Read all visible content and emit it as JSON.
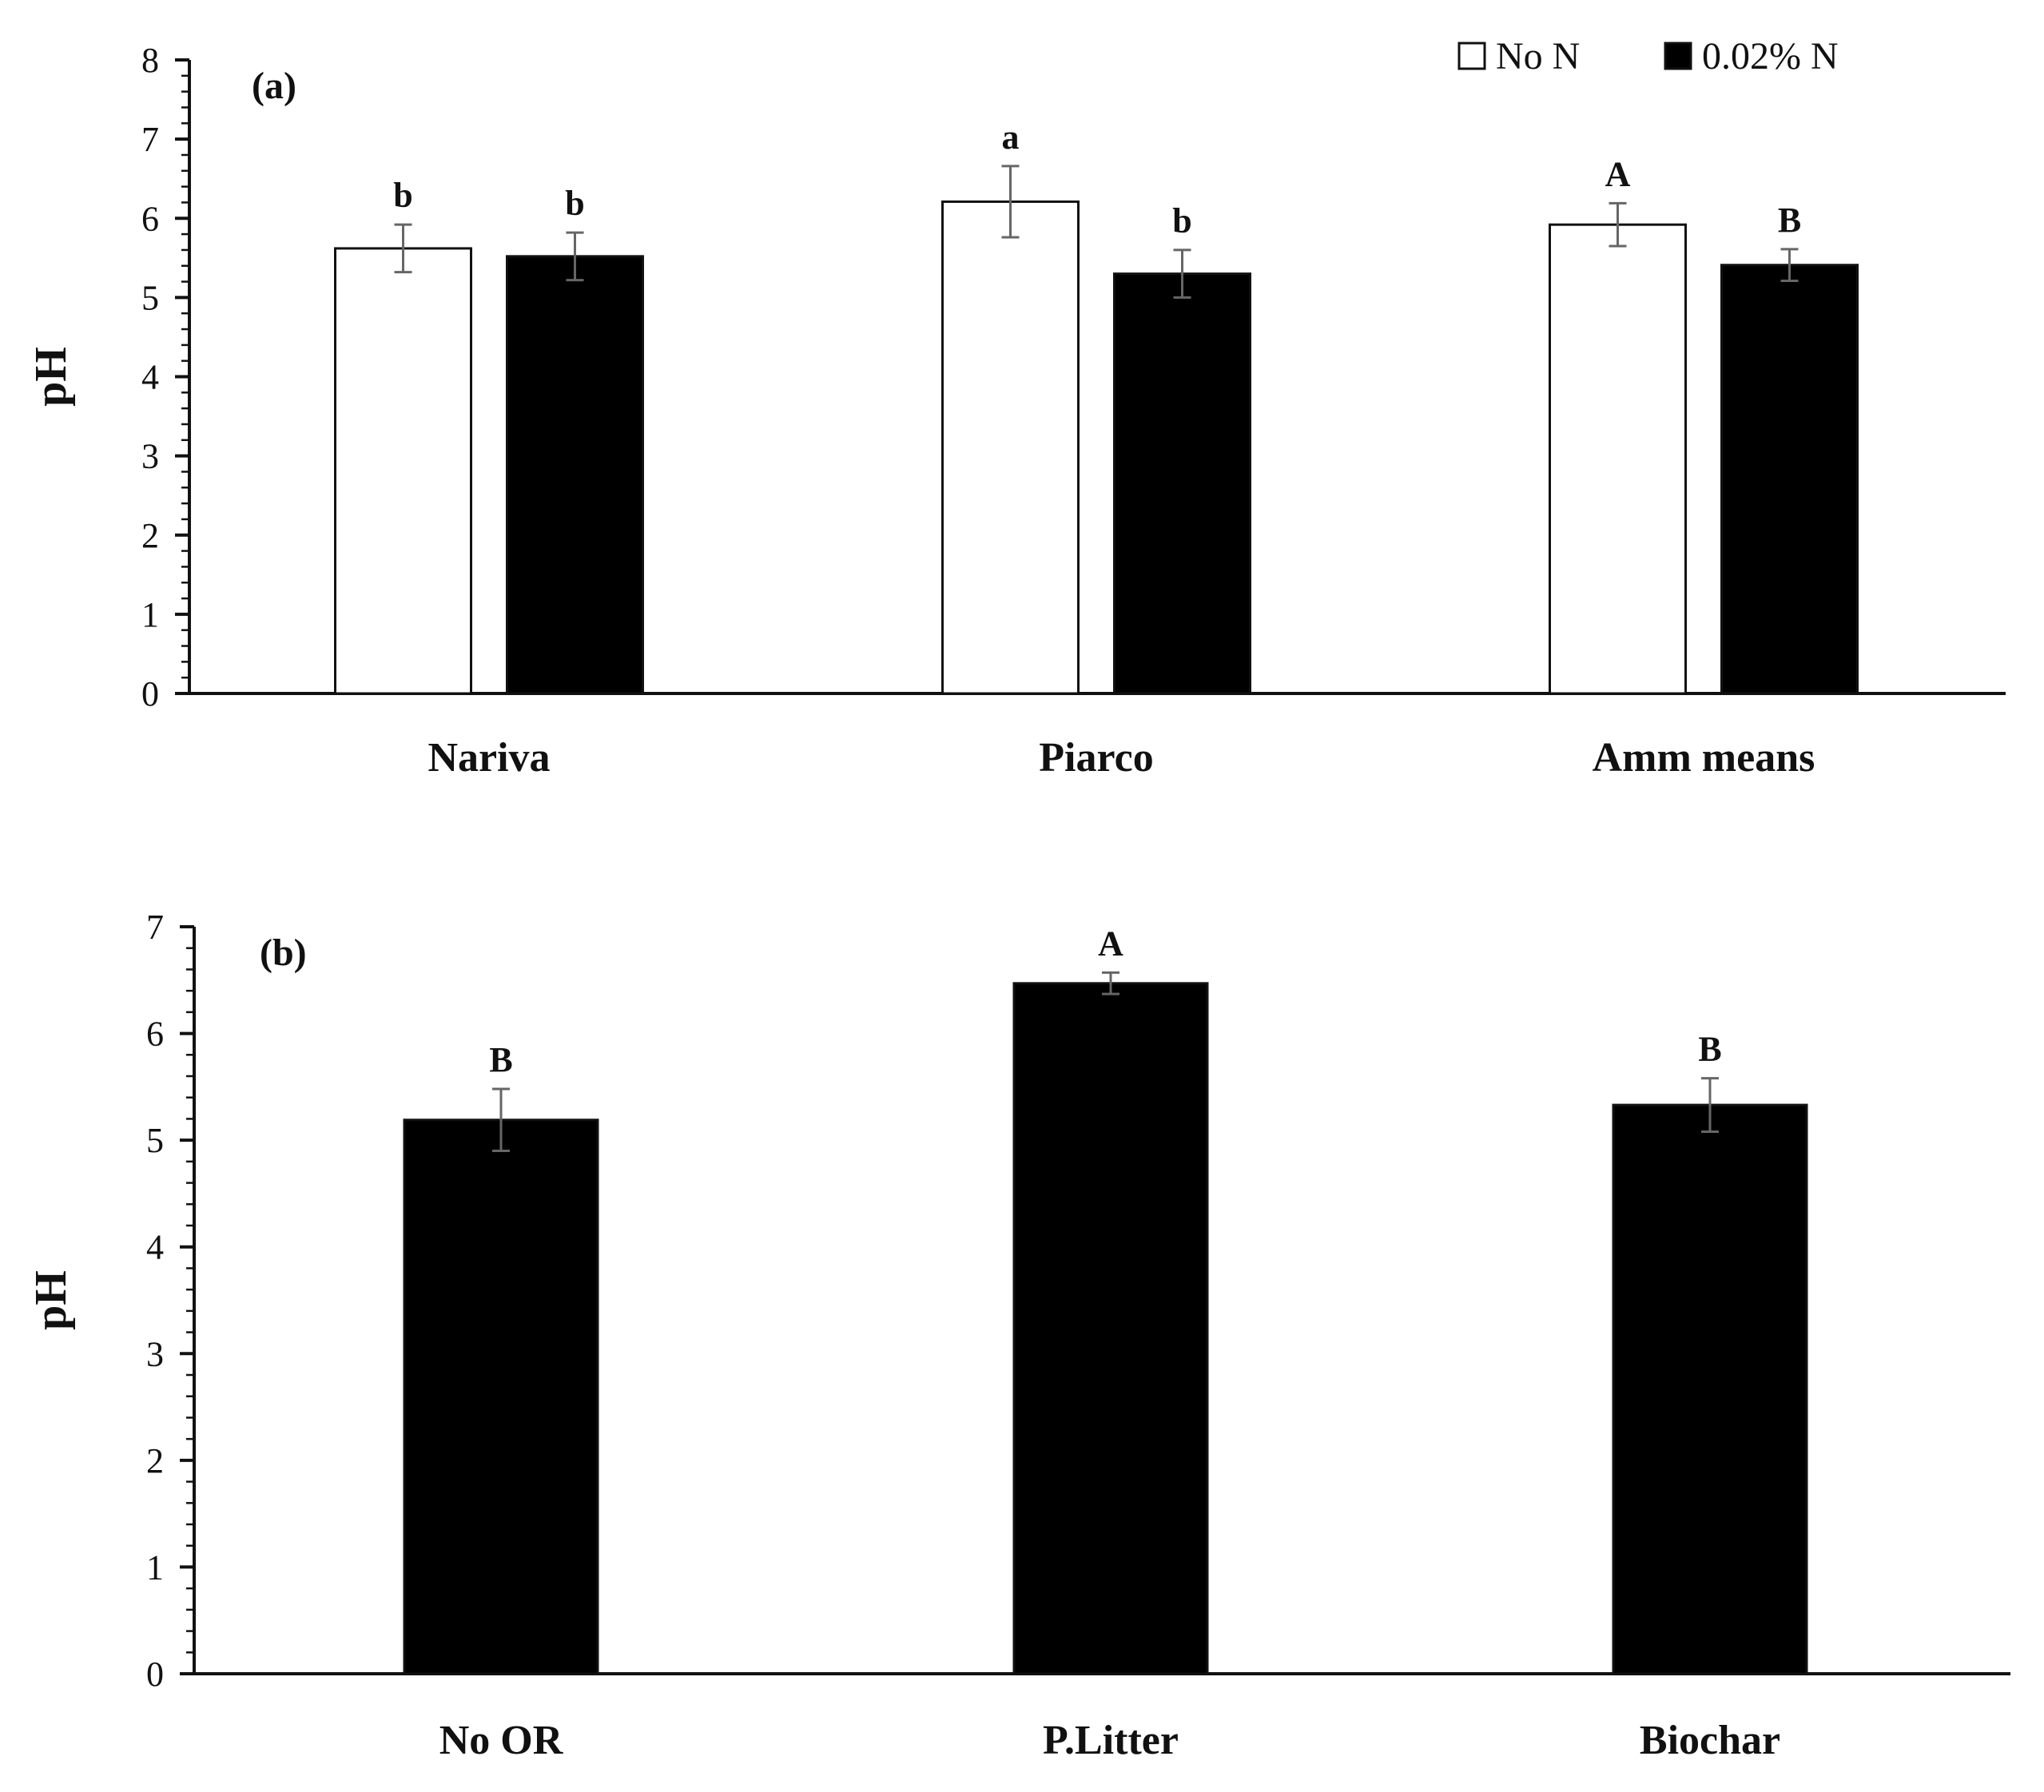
{
  "chart_data": [
    {
      "type": "bar",
      "panel_label": "(a)",
      "ylabel": "pH",
      "xlabel": "",
      "ylim": [
        0,
        8
      ],
      "yticks": [
        0,
        1,
        2,
        3,
        4,
        5,
        6,
        7,
        8
      ],
      "categories": [
        "Nariva",
        "Piarco",
        "Amm means"
      ],
      "series": [
        {
          "name": "No N",
          "color": "#ffffff",
          "values": [
            5.62,
            6.21,
            5.92
          ],
          "errors": [
            0.3,
            0.45,
            0.27
          ],
          "letters": [
            "b",
            "a",
            "A"
          ]
        },
        {
          "name": "0.02% N",
          "color": "#000000",
          "values": [
            5.52,
            5.3,
            5.41
          ],
          "errors": [
            0.3,
            0.3,
            0.2
          ],
          "letters": [
            "b",
            "b",
            "B"
          ]
        }
      ],
      "legend_position": "top-right"
    },
    {
      "type": "bar",
      "panel_label": "(b)",
      "ylabel": "pH",
      "xlabel": "",
      "ylim": [
        0,
        7
      ],
      "yticks": [
        0,
        1,
        2,
        3,
        4,
        5,
        6,
        7
      ],
      "categories": [
        "No OR",
        "P.Litter",
        "Biochar"
      ],
      "series": [
        {
          "name": "",
          "color": "#000000",
          "values": [
            5.19,
            6.47,
            5.33
          ],
          "errors": [
            0.29,
            0.1,
            0.25
          ],
          "letters": [
            "B",
            "A",
            "B"
          ]
        }
      ]
    }
  ]
}
